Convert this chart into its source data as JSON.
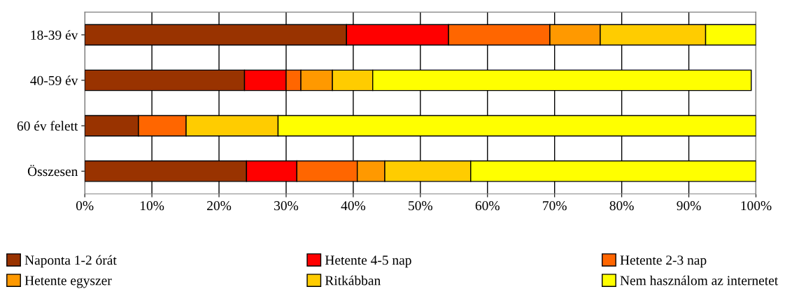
{
  "chart_data": {
    "type": "bar",
    "orientation": "horizontal",
    "stacked": true,
    "categories": [
      "18-39 év",
      "40-59 év",
      "60 év felett",
      "Összesen"
    ],
    "series": [
      {
        "name": "Naponta 1-2 órát",
        "color": "#993300",
        "values": [
          39.0,
          23.8,
          8.0,
          24.1
        ]
      },
      {
        "name": "Hetente 4-5 nap",
        "color": "#ff0000",
        "values": [
          15.2,
          6.2,
          null,
          7.5
        ]
      },
      {
        "name": "Hetente 2-3 nap",
        "color": "#ff6600",
        "values": [
          15.1,
          2.2,
          7.1,
          9.0
        ]
      },
      {
        "name": "Hetente egyszer",
        "color": "#ff9900",
        "values": [
          7.5,
          4.7,
          null,
          4.1
        ]
      },
      {
        "name": "Ritkábban",
        "color": "#ffcc00",
        "values": [
          15.7,
          6.0,
          13.7,
          12.8
        ]
      },
      {
        "name": "Nem használom az internetet",
        "color": "#ffff00",
        "values": [
          7.5,
          56.4,
          71.2,
          42.5
        ]
      }
    ],
    "xlim": [
      0,
      100
    ],
    "xticks": [
      {
        "value": 0,
        "label": "0%"
      },
      {
        "value": 10,
        "label": "10%"
      },
      {
        "value": 20,
        "label": "20%"
      },
      {
        "value": 30,
        "label": "30%"
      },
      {
        "value": 40,
        "label": "40%"
      },
      {
        "value": 50,
        "label": "50%"
      },
      {
        "value": 60,
        "label": "60%"
      },
      {
        "value": 70,
        "label": "70%"
      },
      {
        "value": 80,
        "label": "80%"
      },
      {
        "value": 90,
        "label": "90%"
      },
      {
        "value": 100,
        "label": "100%"
      }
    ],
    "grid": "x",
    "legend": "bottom"
  }
}
